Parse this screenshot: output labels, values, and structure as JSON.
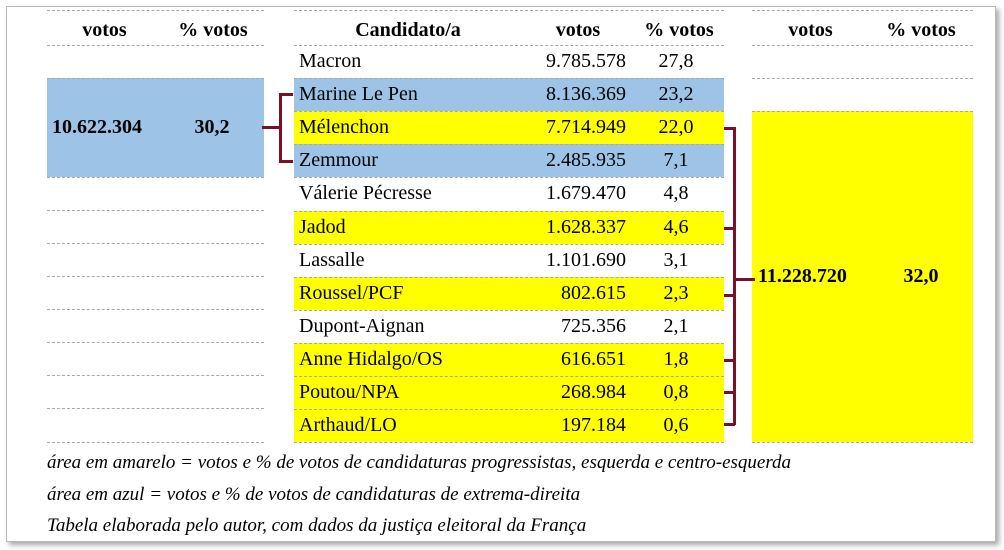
{
  "left": {
    "headers": [
      "votos",
      "% votos"
    ],
    "total_votes": "10.622.304",
    "total_pct": "30,2"
  },
  "center": {
    "headers": [
      "Candidato/a",
      "votos",
      "% votos"
    ],
    "rows": [
      {
        "name": "Macron",
        "votes": "9.785.578",
        "pct": "27,8",
        "group": "none"
      },
      {
        "name": "Marine Le Pen",
        "votes": "8.136.369",
        "pct": "23,2",
        "group": "blue"
      },
      {
        "name": "Mélenchon",
        "votes": "7.714.949",
        "pct": "22,0",
        "group": "yellow"
      },
      {
        "name": "Zemmour",
        "votes": "2.485.935",
        "pct": "7,1",
        "group": "blue"
      },
      {
        "name": "Válerie Pécresse",
        "votes": "1.679.470",
        "pct": "4,8",
        "group": "none"
      },
      {
        "name": "Jadod",
        "votes": "1.628.337",
        "pct": "4,6",
        "group": "yellow"
      },
      {
        "name": "Lassalle",
        "votes": "1.101.690",
        "pct": "3,1",
        "group": "none"
      },
      {
        "name": "Roussel/PCF",
        "votes": "802.615",
        "pct": "2,3",
        "group": "yellow"
      },
      {
        "name": "Dupont-Aignan",
        "votes": "725.356",
        "pct": "2,1",
        "group": "none"
      },
      {
        "name": "Anne Hidalgo/OS",
        "votes": "616.651",
        "pct": "1,8",
        "group": "yellow"
      },
      {
        "name": "Poutou/NPA",
        "votes": "268.984",
        "pct": "0,8",
        "group": "yellow"
      },
      {
        "name": "Arthaud/LO",
        "votes": "197.184",
        "pct": "0,6",
        "group": "yellow"
      }
    ]
  },
  "right": {
    "headers": [
      "votos",
      "% votos"
    ],
    "total_votes": "11.228.720",
    "total_pct": "32,0"
  },
  "notes": [
    "área em amarelo = votos e % de votos de candidaturas progressistas, esquerda e centro-esquerda",
    "área em azul = votos e % de votos de candidaturas de extrema-direita",
    "Tabela elaborada pelo autor, com dados da justiça eleitoral da França"
  ],
  "colors": {
    "yellow": "#ffff00",
    "blue": "#9dc3e6",
    "bracket": "#7b1028"
  }
}
